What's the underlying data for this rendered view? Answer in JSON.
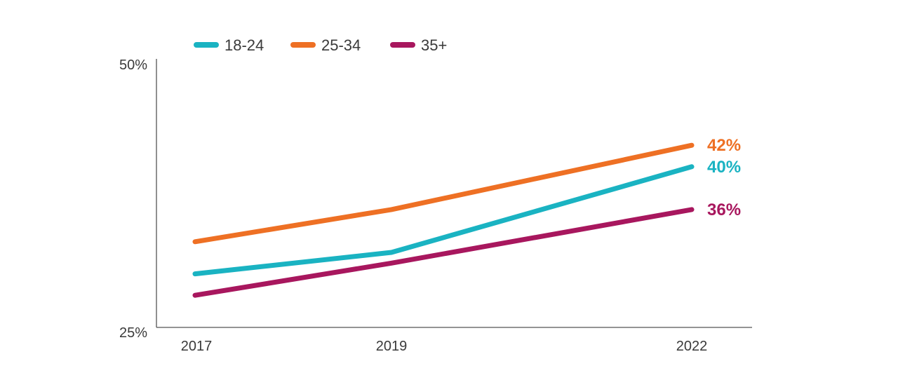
{
  "chart_data": {
    "type": "line",
    "title": "",
    "xlabel": "",
    "ylabel": "",
    "x": [
      "2017",
      "2019",
      "2022"
    ],
    "x_values": [
      2017,
      2019,
      2022
    ],
    "ylim": [
      25,
      50
    ],
    "y_ticks": [
      "25%",
      "50%"
    ],
    "y_tick_values": [
      25,
      50
    ],
    "grid": false,
    "legend_position": "top-left",
    "series": [
      {
        "name": "18-24",
        "color": "#1ab3c2",
        "values": [
          30,
          32,
          40
        ],
        "end_label": "40%"
      },
      {
        "name": "25-34",
        "color": "#ee7024",
        "values": [
          33,
          36,
          42
        ],
        "end_label": "42%"
      },
      {
        "name": "35+",
        "color": "#a8175e",
        "values": [
          28,
          31,
          36
        ],
        "end_label": "36%"
      }
    ]
  }
}
